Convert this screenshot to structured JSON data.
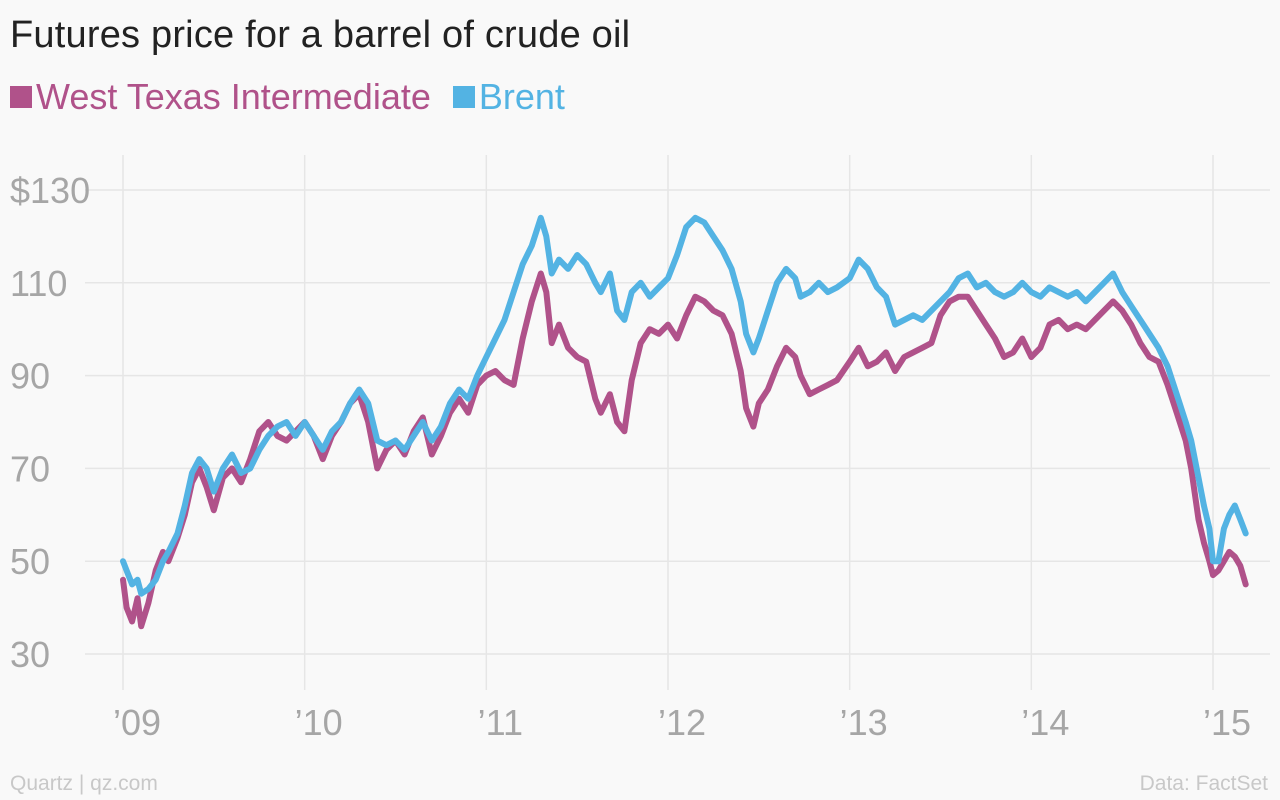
{
  "chart_data": {
    "type": "line",
    "title": "Futures price for a barrel of crude oil",
    "xlabel": "",
    "ylabel": "",
    "ylim": [
      22,
      140
    ],
    "xlim": [
      2009,
      2015.2
    ],
    "y_ticks": [
      {
        "value": 130,
        "label": "$130"
      },
      {
        "value": 110,
        "label": "110"
      },
      {
        "value": 90,
        "label": "90"
      },
      {
        "value": 70,
        "label": "70"
      },
      {
        "value": 50,
        "label": "50"
      },
      {
        "value": 30,
        "label": "30"
      }
    ],
    "x_ticks": [
      {
        "value": 2009,
        "label": "’09"
      },
      {
        "value": 2010,
        "label": "’10"
      },
      {
        "value": 2011,
        "label": "’11"
      },
      {
        "value": 2012,
        "label": "’12"
      },
      {
        "value": 2013,
        "label": "’13"
      },
      {
        "value": 2014,
        "label": "’14"
      },
      {
        "value": 2015,
        "label": "’15"
      }
    ],
    "grid": true,
    "legend_position": "top-left",
    "series": [
      {
        "name": "West Texas Intermediate",
        "color": "#b0528a",
        "points": [
          [
            2009.0,
            46
          ],
          [
            2009.02,
            40
          ],
          [
            2009.05,
            37
          ],
          [
            2009.08,
            42
          ],
          [
            2009.1,
            36
          ],
          [
            2009.14,
            41
          ],
          [
            2009.18,
            48
          ],
          [
            2009.22,
            52
          ],
          [
            2009.25,
            50
          ],
          [
            2009.3,
            55
          ],
          [
            2009.34,
            60
          ],
          [
            2009.38,
            67
          ],
          [
            2009.42,
            70
          ],
          [
            2009.46,
            66
          ],
          [
            2009.5,
            61
          ],
          [
            2009.55,
            68
          ],
          [
            2009.6,
            70
          ],
          [
            2009.65,
            67
          ],
          [
            2009.7,
            72
          ],
          [
            2009.75,
            78
          ],
          [
            2009.8,
            80
          ],
          [
            2009.85,
            77
          ],
          [
            2009.9,
            76
          ],
          [
            2009.95,
            78
          ],
          [
            2010.0,
            80
          ],
          [
            2010.05,
            77
          ],
          [
            2010.1,
            72
          ],
          [
            2010.15,
            77
          ],
          [
            2010.2,
            80
          ],
          [
            2010.25,
            84
          ],
          [
            2010.3,
            86
          ],
          [
            2010.35,
            80
          ],
          [
            2010.4,
            70
          ],
          [
            2010.45,
            74
          ],
          [
            2010.5,
            76
          ],
          [
            2010.55,
            73
          ],
          [
            2010.6,
            78
          ],
          [
            2010.65,
            81
          ],
          [
            2010.7,
            73
          ],
          [
            2010.75,
            77
          ],
          [
            2010.8,
            82
          ],
          [
            2010.85,
            85
          ],
          [
            2010.9,
            82
          ],
          [
            2010.95,
            88
          ],
          [
            2011.0,
            90
          ],
          [
            2011.05,
            91
          ],
          [
            2011.1,
            89
          ],
          [
            2011.15,
            88
          ],
          [
            2011.2,
            98
          ],
          [
            2011.25,
            106
          ],
          [
            2011.3,
            112
          ],
          [
            2011.33,
            108
          ],
          [
            2011.36,
            97
          ],
          [
            2011.4,
            101
          ],
          [
            2011.45,
            96
          ],
          [
            2011.5,
            94
          ],
          [
            2011.55,
            93
          ],
          [
            2011.6,
            85
          ],
          [
            2011.63,
            82
          ],
          [
            2011.68,
            86
          ],
          [
            2011.72,
            80
          ],
          [
            2011.76,
            78
          ],
          [
            2011.8,
            89
          ],
          [
            2011.85,
            97
          ],
          [
            2011.9,
            100
          ],
          [
            2011.95,
            99
          ],
          [
            2012.0,
            101
          ],
          [
            2012.05,
            98
          ],
          [
            2012.1,
            103
          ],
          [
            2012.15,
            107
          ],
          [
            2012.2,
            106
          ],
          [
            2012.25,
            104
          ],
          [
            2012.3,
            103
          ],
          [
            2012.35,
            99
          ],
          [
            2012.4,
            91
          ],
          [
            2012.43,
            83
          ],
          [
            2012.47,
            79
          ],
          [
            2012.5,
            84
          ],
          [
            2012.55,
            87
          ],
          [
            2012.6,
            92
          ],
          [
            2012.65,
            96
          ],
          [
            2012.7,
            94
          ],
          [
            2012.73,
            90
          ],
          [
            2012.78,
            86
          ],
          [
            2012.83,
            87
          ],
          [
            2012.88,
            88
          ],
          [
            2012.93,
            89
          ],
          [
            2013.0,
            93
          ],
          [
            2013.05,
            96
          ],
          [
            2013.1,
            92
          ],
          [
            2013.15,
            93
          ],
          [
            2013.2,
            95
          ],
          [
            2013.25,
            91
          ],
          [
            2013.3,
            94
          ],
          [
            2013.35,
            95
          ],
          [
            2013.4,
            96
          ],
          [
            2013.45,
            97
          ],
          [
            2013.5,
            103
          ],
          [
            2013.55,
            106
          ],
          [
            2013.6,
            107
          ],
          [
            2013.65,
            107
          ],
          [
            2013.7,
            104
          ],
          [
            2013.75,
            101
          ],
          [
            2013.8,
            98
          ],
          [
            2013.85,
            94
          ],
          [
            2013.9,
            95
          ],
          [
            2013.95,
            98
          ],
          [
            2014.0,
            94
          ],
          [
            2014.05,
            96
          ],
          [
            2014.1,
            101
          ],
          [
            2014.15,
            102
          ],
          [
            2014.2,
            100
          ],
          [
            2014.25,
            101
          ],
          [
            2014.3,
            100
          ],
          [
            2014.35,
            102
          ],
          [
            2014.4,
            104
          ],
          [
            2014.45,
            106
          ],
          [
            2014.5,
            104
          ],
          [
            2014.55,
            101
          ],
          [
            2014.6,
            97
          ],
          [
            2014.65,
            94
          ],
          [
            2014.7,
            93
          ],
          [
            2014.75,
            88
          ],
          [
            2014.8,
            82
          ],
          [
            2014.85,
            76
          ],
          [
            2014.88,
            70
          ],
          [
            2014.92,
            59
          ],
          [
            2014.95,
            54
          ],
          [
            2014.98,
            50
          ],
          [
            2015.0,
            47
          ],
          [
            2015.03,
            48
          ],
          [
            2015.06,
            50
          ],
          [
            2015.09,
            52
          ],
          [
            2015.12,
            51
          ],
          [
            2015.15,
            49
          ],
          [
            2015.18,
            45
          ]
        ]
      },
      {
        "name": "Brent",
        "color": "#53b3e3",
        "points": [
          [
            2009.0,
            50
          ],
          [
            2009.02,
            48
          ],
          [
            2009.05,
            45
          ],
          [
            2009.08,
            46
          ],
          [
            2009.1,
            43
          ],
          [
            2009.14,
            44
          ],
          [
            2009.18,
            46
          ],
          [
            2009.22,
            50
          ],
          [
            2009.25,
            52
          ],
          [
            2009.3,
            56
          ],
          [
            2009.34,
            62
          ],
          [
            2009.38,
            69
          ],
          [
            2009.42,
            72
          ],
          [
            2009.46,
            70
          ],
          [
            2009.5,
            65
          ],
          [
            2009.55,
            70
          ],
          [
            2009.6,
            73
          ],
          [
            2009.65,
            69
          ],
          [
            2009.7,
            70
          ],
          [
            2009.75,
            74
          ],
          [
            2009.8,
            77
          ],
          [
            2009.85,
            79
          ],
          [
            2009.9,
            80
          ],
          [
            2009.95,
            77
          ],
          [
            2010.0,
            80
          ],
          [
            2010.05,
            77
          ],
          [
            2010.1,
            74
          ],
          [
            2010.15,
            78
          ],
          [
            2010.2,
            80
          ],
          [
            2010.25,
            84
          ],
          [
            2010.3,
            87
          ],
          [
            2010.35,
            84
          ],
          [
            2010.4,
            76
          ],
          [
            2010.45,
            75
          ],
          [
            2010.5,
            76
          ],
          [
            2010.55,
            74
          ],
          [
            2010.6,
            77
          ],
          [
            2010.65,
            80
          ],
          [
            2010.7,
            76
          ],
          [
            2010.75,
            79
          ],
          [
            2010.8,
            84
          ],
          [
            2010.85,
            87
          ],
          [
            2010.9,
            85
          ],
          [
            2010.95,
            90
          ],
          [
            2011.0,
            94
          ],
          [
            2011.05,
            98
          ],
          [
            2011.1,
            102
          ],
          [
            2011.15,
            108
          ],
          [
            2011.2,
            114
          ],
          [
            2011.25,
            118
          ],
          [
            2011.3,
            124
          ],
          [
            2011.33,
            120
          ],
          [
            2011.36,
            112
          ],
          [
            2011.4,
            115
          ],
          [
            2011.45,
            113
          ],
          [
            2011.5,
            116
          ],
          [
            2011.55,
            114
          ],
          [
            2011.6,
            110
          ],
          [
            2011.63,
            108
          ],
          [
            2011.68,
            112
          ],
          [
            2011.72,
            104
          ],
          [
            2011.76,
            102
          ],
          [
            2011.8,
            108
          ],
          [
            2011.85,
            110
          ],
          [
            2011.9,
            107
          ],
          [
            2011.95,
            109
          ],
          [
            2012.0,
            111
          ],
          [
            2012.05,
            116
          ],
          [
            2012.1,
            122
          ],
          [
            2012.15,
            124
          ],
          [
            2012.2,
            123
          ],
          [
            2012.25,
            120
          ],
          [
            2012.3,
            117
          ],
          [
            2012.35,
            113
          ],
          [
            2012.4,
            106
          ],
          [
            2012.43,
            99
          ],
          [
            2012.47,
            95
          ],
          [
            2012.5,
            98
          ],
          [
            2012.55,
            104
          ],
          [
            2012.6,
            110
          ],
          [
            2012.65,
            113
          ],
          [
            2012.7,
            111
          ],
          [
            2012.73,
            107
          ],
          [
            2012.78,
            108
          ],
          [
            2012.83,
            110
          ],
          [
            2012.88,
            108
          ],
          [
            2012.93,
            109
          ],
          [
            2013.0,
            111
          ],
          [
            2013.05,
            115
          ],
          [
            2013.1,
            113
          ],
          [
            2013.15,
            109
          ],
          [
            2013.2,
            107
          ],
          [
            2013.25,
            101
          ],
          [
            2013.3,
            102
          ],
          [
            2013.35,
            103
          ],
          [
            2013.4,
            102
          ],
          [
            2013.45,
            104
          ],
          [
            2013.5,
            106
          ],
          [
            2013.55,
            108
          ],
          [
            2013.6,
            111
          ],
          [
            2013.65,
            112
          ],
          [
            2013.7,
            109
          ],
          [
            2013.75,
            110
          ],
          [
            2013.8,
            108
          ],
          [
            2013.85,
            107
          ],
          [
            2013.9,
            108
          ],
          [
            2013.95,
            110
          ],
          [
            2014.0,
            108
          ],
          [
            2014.05,
            107
          ],
          [
            2014.1,
            109
          ],
          [
            2014.15,
            108
          ],
          [
            2014.2,
            107
          ],
          [
            2014.25,
            108
          ],
          [
            2014.3,
            106
          ],
          [
            2014.35,
            108
          ],
          [
            2014.4,
            110
          ],
          [
            2014.45,
            112
          ],
          [
            2014.5,
            108
          ],
          [
            2014.55,
            105
          ],
          [
            2014.6,
            102
          ],
          [
            2014.65,
            99
          ],
          [
            2014.7,
            96
          ],
          [
            2014.75,
            92
          ],
          [
            2014.8,
            86
          ],
          [
            2014.85,
            80
          ],
          [
            2014.88,
            76
          ],
          [
            2014.92,
            68
          ],
          [
            2014.95,
            62
          ],
          [
            2014.98,
            57
          ],
          [
            2015.0,
            50
          ],
          [
            2015.03,
            50
          ],
          [
            2015.06,
            57
          ],
          [
            2015.09,
            60
          ],
          [
            2015.12,
            62
          ],
          [
            2015.15,
            59
          ],
          [
            2015.18,
            56
          ]
        ]
      }
    ],
    "source": "Quartz | qz.com",
    "credit": "Data: FactSet"
  }
}
